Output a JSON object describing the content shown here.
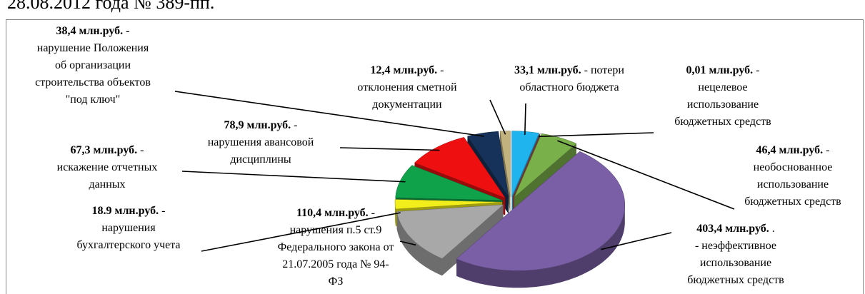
{
  "chart_data": {
    "type": "pie3d",
    "title": "28.08.2012 года № 389-пп.",
    "values": [
      33.1,
      0.01,
      46.4,
      403.4,
      110.4,
      18.9,
      67.3,
      78.9,
      38.4,
      12.4
    ],
    "value_labels": [
      "33,1 млн.руб.",
      "0,01 млн.руб.",
      "46,4 млн.руб.",
      "403,4 млн.руб.",
      "110,4 млн.руб.",
      "18.9 млн.руб.",
      "67,3 млн.руб.",
      "78,9 млн.руб.",
      "38,4 млн.руб.",
      "12,4 млн.руб."
    ],
    "notes": [
      {
        "head": "- потери",
        "lines": [
          "областного бюджета"
        ]
      },
      {
        "head": "-",
        "lines": [
          "нецелевое",
          "использование",
          "бюджетных средств"
        ]
      },
      {
        "head": "-",
        "lines": [
          "необоснованное",
          "использование",
          "бюджетных средств"
        ]
      },
      {
        "head": ".",
        "lines": [
          "- неэффективное",
          "использование",
          "бюджетных средств"
        ]
      },
      {
        "head": "-",
        "lines": [
          "нарушения  п.5 ст.9",
          "Федерального закона от",
          "21.07.2005 года № 94-",
          "ФЗ"
        ]
      },
      {
        "head": "-",
        "lines": [
          "нарушения",
          "бухгалтерского учета"
        ]
      },
      {
        "head": "-",
        "lines": [
          "искажение  отчетных",
          "данных"
        ]
      },
      {
        "head": "-",
        "lines": [
          "нарушения  авансовой",
          "дисциплины"
        ]
      },
      {
        "head": "-",
        "lines": [
          "нарушение  Положения",
          "об организации",
          "строительства объектов",
          "\"под ключ\""
        ]
      },
      {
        "head": "-",
        "lines": [
          "отклонения сметной",
          "документации"
        ]
      }
    ],
    "colors": [
      "#1fb4ee",
      "#b0504a",
      "#79b04a",
      "#7a5ea6",
      "#a8a8a8",
      "#f2ee1c",
      "#0fa24b",
      "#ee1010",
      "#16325a",
      "#c2b27e"
    ]
  }
}
